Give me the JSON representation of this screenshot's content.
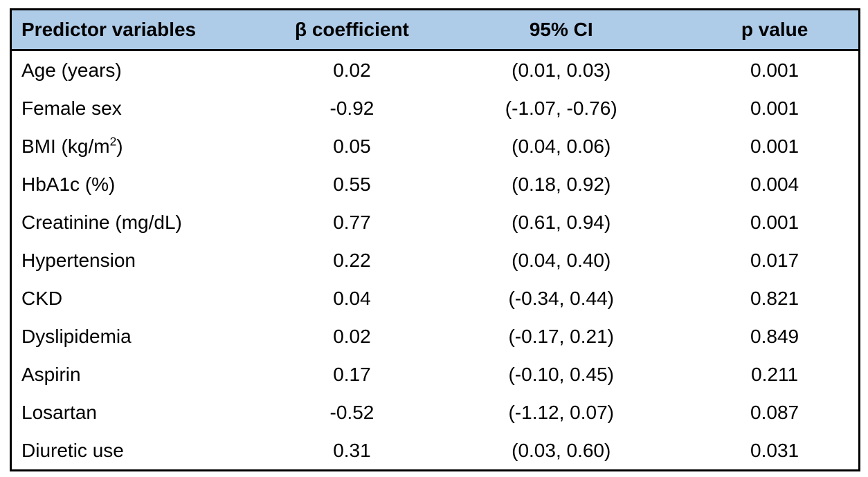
{
  "colors": {
    "header_bg": "#AECBE8",
    "border": "#000000",
    "text": "#000000",
    "background": "#FFFFFF"
  },
  "header": {
    "columns": [
      "Predictor variables",
      "β coefficient",
      "95% CI",
      "p value"
    ]
  },
  "table": {
    "rows": [
      {
        "predictor": "Age (years)",
        "beta": "0.02",
        "ci": "(0.01, 0.03)",
        "p": "0.001"
      },
      {
        "predictor": "Female sex",
        "beta": "-0.92",
        "ci": "(-1.07, -0.76)",
        "p": "0.001"
      },
      {
        "predictor": "BMI (kg/m²)",
        "beta": "0.05",
        "ci": "(0.04, 0.06)",
        "p": "0.001"
      },
      {
        "predictor": "HbA1c (%)",
        "beta": "0.55",
        "ci": "(0.18, 0.92)",
        "p": "0.004"
      },
      {
        "predictor": "Creatinine (mg/dL)",
        "beta": "0.77",
        "ci": "(0.61, 0.94)",
        "p": "0.001"
      },
      {
        "predictor": "Hypertension",
        "beta": "0.22",
        "ci": "(0.04, 0.40)",
        "p": "0.017"
      },
      {
        "predictor": "CKD",
        "beta": "0.04",
        "ci": "(-0.34, 0.44)",
        "p": "0.821"
      },
      {
        "predictor": "Dyslipidemia",
        "beta": "0.02",
        "ci": "(-0.17, 0.21)",
        "p": "0.849"
      },
      {
        "predictor": "Aspirin",
        "beta": "0.17",
        "ci": "(-0.10, 0.45)",
        "p": "0.211"
      },
      {
        "predictor": "Losartan",
        "beta": "-0.52",
        "ci": "(-1.12, 0.07)",
        "p": "0.087"
      },
      {
        "predictor": "Diuretic use",
        "beta": "0.31",
        "ci": "(0.03, 0.60)",
        "p": "0.031"
      }
    ]
  },
  "chart_data": {
    "type": "table",
    "columns": [
      "Predictor variables",
      "β coefficient",
      "95% CI",
      "p value"
    ],
    "rows": [
      [
        "Age (years)",
        "0.02",
        "(0.01, 0.03)",
        "0.001"
      ],
      [
        "Female sex",
        "-0.92",
        "(-1.07, -0.76)",
        "0.001"
      ],
      [
        "BMI (kg/m²)",
        "0.05",
        "(0.04, 0.06)",
        "0.001"
      ],
      [
        "HbA1c (%)",
        "0.55",
        "(0.18, 0.92)",
        "0.004"
      ],
      [
        "Creatinine (mg/dL)",
        "0.77",
        "(0.61, 0.94)",
        "0.001"
      ],
      [
        "Hypertension",
        "0.22",
        "(0.04, 0.40)",
        "0.017"
      ],
      [
        "CKD",
        "0.04",
        "(-0.34, 0.44)",
        "0.821"
      ],
      [
        "Dyslipidemia",
        "0.02",
        "(-0.17, 0.21)",
        "0.849"
      ],
      [
        "Aspirin",
        "0.17",
        "(-0.10, 0.45)",
        "0.211"
      ],
      [
        "Losartan",
        "-0.52",
        "(-1.12, 0.07)",
        "0.087"
      ],
      [
        "Diuretic use",
        "0.31",
        "(0.03, 0.60)",
        "0.031"
      ]
    ]
  }
}
